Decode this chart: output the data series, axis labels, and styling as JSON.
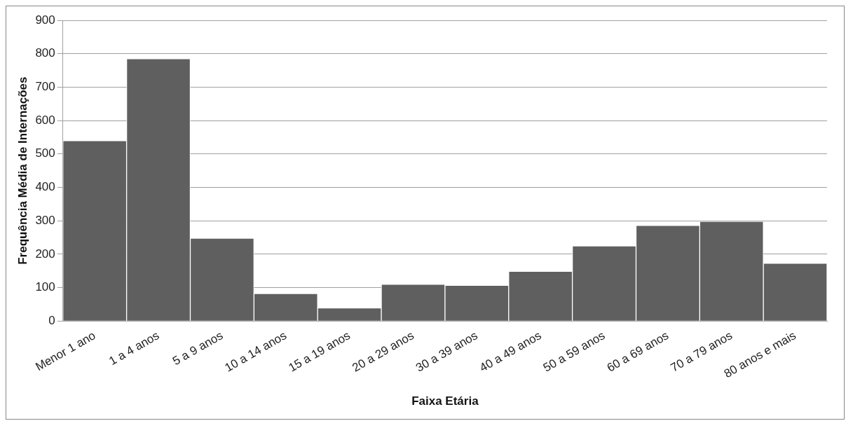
{
  "chart_data": {
    "type": "bar",
    "xlabel": "Faixa Etária",
    "ylabel": "Frequência Média de Internações",
    "categories": [
      "Menor 1 ano",
      "1 a 4 anos",
      "5 a 9 anos",
      "10 a 14 anos",
      "15 a 19 anos",
      "20 a 29 anos",
      "30 a 39 anos",
      "40 a 49 anos",
      "50 a 59 anos",
      "60 a 69 anos",
      "70 a 79 anos",
      "80 anos e mais"
    ],
    "values": [
      540,
      785,
      248,
      82,
      39,
      110,
      107,
      149,
      225,
      286,
      298,
      173
    ],
    "color": "#5f5f5f",
    "ylim": [
      0,
      900
    ],
    "yticks": [
      0,
      100,
      200,
      300,
      400,
      500,
      600,
      700,
      800,
      900
    ],
    "grid": "y",
    "legend": false
  }
}
